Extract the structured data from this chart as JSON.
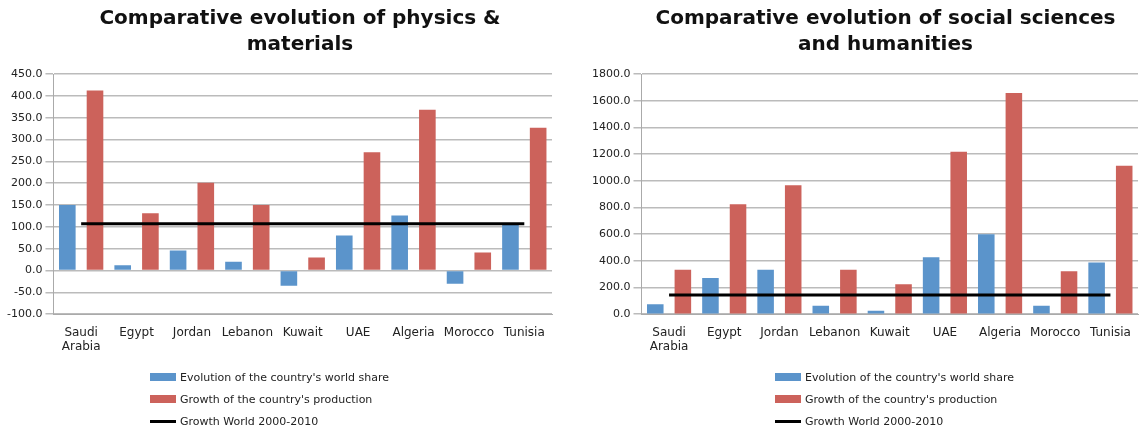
{
  "chart_data": [
    {
      "type": "bar",
      "title": "Comparative evolution of physics & materials",
      "categories": [
        "Saudi Arabia",
        "Egypt",
        "Jordan",
        "Lebanon",
        "Kuwait",
        "UAE",
        "Algeria",
        "Morocco",
        "Tunisia"
      ],
      "series": [
        {
          "name": "Evolution of the country's world share",
          "color": "#5b94cb",
          "values": [
            150,
            12,
            46,
            20,
            -35,
            80,
            126,
            -30,
            108
          ]
        },
        {
          "name": "Growth of the country's production",
          "color": "#cc625b",
          "values": [
            412,
            131,
            201,
            150,
            30,
            271,
            368,
            41,
            327
          ]
        },
        {
          "name": "Growth World 2000-2010",
          "type": "line",
          "color": "#000000",
          "values": [
            107,
            107,
            107,
            107,
            107,
            107,
            107,
            107,
            107
          ]
        }
      ],
      "ylim": [
        -100,
        450
      ],
      "yticks": [
        {
          "value": -100,
          "label": "-100.0"
        },
        {
          "value": -50,
          "label": "-50.0"
        },
        {
          "value": 0,
          "label": "0.0"
        },
        {
          "value": 50,
          "label": "50.0"
        },
        {
          "value": 100,
          "label": "100.0"
        },
        {
          "value": 150,
          "label": "150.0"
        },
        {
          "value": 200,
          "label": "200.0"
        },
        {
          "value": 250,
          "label": "250.0"
        },
        {
          "value": 300,
          "label": "300.0"
        },
        {
          "value": 350,
          "label": "350.0"
        },
        {
          "value": 400,
          "label": "400.0"
        },
        {
          "value": 450,
          "label": "450.0"
        }
      ],
      "grid": "y",
      "legend": "bottom",
      "marker": "none"
    },
    {
      "type": "bar",
      "title": "Comparative evolution of social sciences and humanities",
      "categories": [
        "Saudi Arabia",
        "Egypt",
        "Jordan",
        "Lebanon",
        "Kuwait",
        "UAE",
        "Algeria",
        "Morocco",
        "Tunisia"
      ],
      "series": [
        {
          "name": "Evolution of the country's world share",
          "color": "#5b94cb",
          "values": [
            74,
            272,
            333,
            63,
            25,
            426,
            599,
            63,
            387
          ]
        },
        {
          "name": "Growth of the country's production",
          "color": "#cc625b",
          "values": [
            333,
            824,
            967,
            333,
            225,
            1217,
            1657,
            322,
            1113
          ]
        },
        {
          "name": "Growth World 2000-2010",
          "type": "line",
          "color": "#000000",
          "values": [
            143,
            143,
            143,
            143,
            143,
            143,
            143,
            143,
            143
          ]
        }
      ],
      "ylim": [
        0,
        1800
      ],
      "yticks": [
        {
          "value": 0,
          "label": "0.0"
        },
        {
          "value": 200,
          "label": "200.0"
        },
        {
          "value": 400,
          "label": "400.0"
        },
        {
          "value": 600,
          "label": "600.0"
        },
        {
          "value": 800,
          "label": "800.0"
        },
        {
          "value": 1000,
          "label": "1000.0"
        },
        {
          "value": 1200,
          "label": "1200.0"
        },
        {
          "value": 1400,
          "label": "1400.0"
        },
        {
          "value": 1600,
          "label": "1600.0"
        },
        {
          "value": 1800,
          "label": "1800.0"
        }
      ],
      "grid": "y",
      "legend": "bottom",
      "marker": "none"
    }
  ]
}
